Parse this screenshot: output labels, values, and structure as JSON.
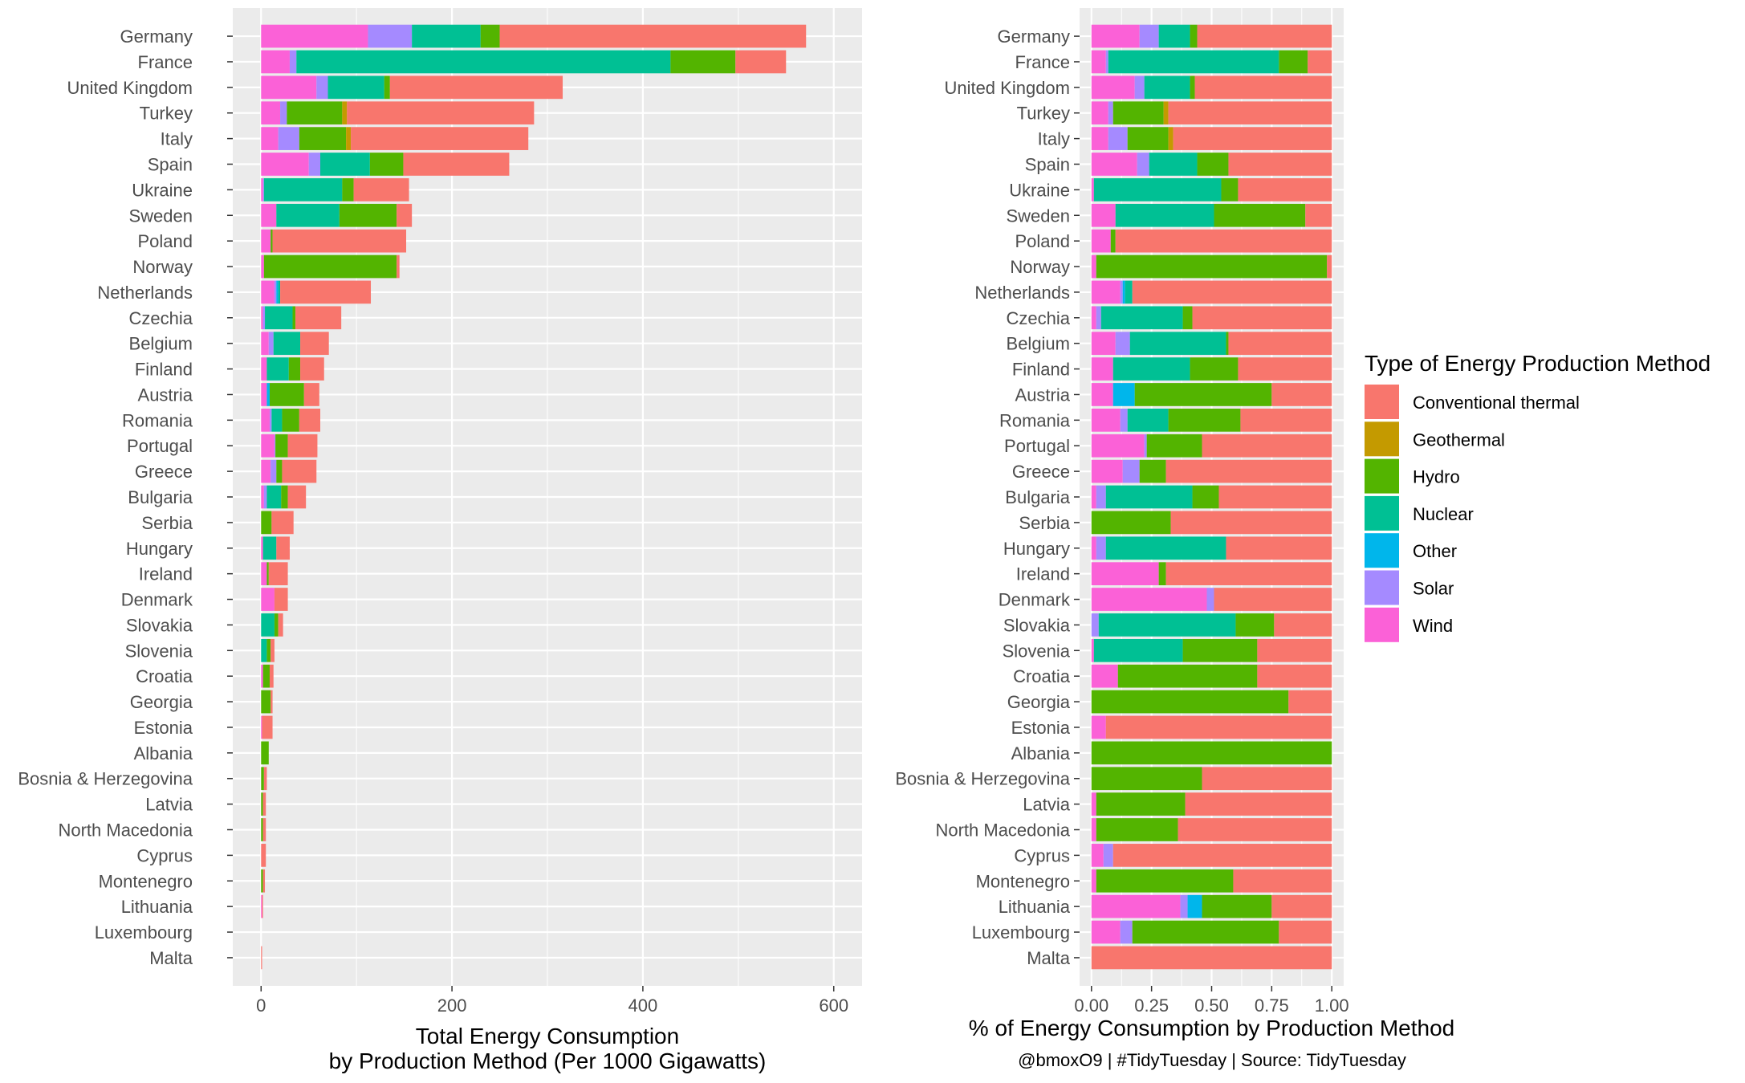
{
  "chart_data": [
    {
      "type": "bar",
      "orientation": "horizontal",
      "stacked": true,
      "categories": [
        "Germany",
        "France",
        "United Kingdom",
        "Turkey",
        "Italy",
        "Spain",
        "Ukraine",
        "Sweden",
        "Poland",
        "Norway",
        "Netherlands",
        "Czechia",
        "Belgium",
        "Finland",
        "Austria",
        "Romania",
        "Portugal",
        "Greece",
        "Bulgaria",
        "Serbia",
        "Hungary",
        "Ireland",
        "Denmark",
        "Slovakia",
        "Slovenia",
        "Croatia",
        "Georgia",
        "Estonia",
        "Albania",
        "Bosnia & Herzegovina",
        "Latvia",
        "North Macedonia",
        "Cyprus",
        "Montenegro",
        "Lithuania",
        "Luxembourg",
        "Malta"
      ],
      "series": [
        {
          "name": "Wind",
          "values": [
            112,
            30,
            58,
            20,
            18,
            50,
            2,
            16,
            10,
            3,
            14,
            2,
            8,
            6,
            6,
            9,
            14,
            10,
            3,
            0,
            2,
            6,
            14,
            0,
            0,
            2,
            0,
            1,
            0,
            0,
            0,
            0,
            0,
            0,
            1,
            0,
            0
          ]
        },
        {
          "name": "Solar",
          "values": [
            46,
            7,
            12,
            7,
            22,
            12,
            1,
            0,
            0,
            0,
            2,
            2,
            5,
            0,
            0,
            2,
            1,
            6,
            3,
            0,
            0,
            0,
            0,
            0,
            0,
            0,
            0,
            0,
            0,
            0,
            0,
            0,
            0,
            0,
            0,
            0,
            0
          ]
        },
        {
          "name": "Other",
          "values": [
            0,
            0,
            0,
            0,
            0,
            0,
            0,
            0,
            0,
            0,
            2,
            0,
            0,
            0,
            3,
            0,
            0,
            0,
            0,
            0,
            0,
            0,
            0,
            0,
            0,
            0,
            0,
            0,
            0,
            0,
            0,
            0,
            0,
            0,
            0,
            0,
            0
          ]
        },
        {
          "name": "Nuclear",
          "values": [
            72,
            392,
            59,
            0,
            0,
            52,
            82,
            66,
            0,
            0,
            2,
            29,
            28,
            23,
            0,
            11,
            0,
            0,
            15,
            0,
            14,
            0,
            0,
            14,
            6,
            0,
            0,
            0,
            0,
            0,
            0,
            0,
            0,
            0,
            0,
            0,
            0
          ]
        },
        {
          "name": "Hydro",
          "values": [
            20,
            68,
            6,
            58,
            49,
            35,
            12,
            60,
            2,
            139,
            0,
            3,
            0,
            12,
            36,
            18,
            13,
            6,
            7,
            11,
            0,
            2,
            0,
            4,
            4,
            7,
            10,
            0,
            8,
            3,
            2,
            2,
            0,
            2,
            0,
            0,
            0
          ]
        },
        {
          "name": "Geothermal",
          "values": [
            0,
            0,
            0,
            5,
            5,
            0,
            0,
            0,
            0,
            0,
            0,
            0,
            0,
            0,
            0,
            0,
            0,
            0,
            0,
            0,
            0,
            0,
            0,
            0,
            0,
            0,
            0,
            0,
            0,
            0,
            0,
            0,
            0,
            0,
            0,
            0,
            0
          ]
        },
        {
          "name": "Conventional thermal",
          "values": [
            321,
            53,
            181,
            196,
            186,
            111,
            58,
            16,
            140,
            3,
            95,
            48,
            30,
            25,
            16,
            22,
            31,
            36,
            19,
            23,
            14,
            20,
            14,
            5,
            4,
            4,
            2,
            11,
            0,
            3,
            3,
            3,
            5,
            2,
            1,
            0,
            1
          ]
        }
      ],
      "xlabel": "Total Energy Consumption\nby Production Method (Per 1000 Gigawatts)",
      "x_ticks": [
        "0",
        "200",
        "400",
        "600"
      ],
      "xlim": [
        0,
        600
      ],
      "grid": true
    },
    {
      "type": "bar",
      "orientation": "horizontal",
      "stacked": true,
      "normalized": true,
      "categories": [
        "Germany",
        "France",
        "United Kingdom",
        "Turkey",
        "Italy",
        "Spain",
        "Ukraine",
        "Sweden",
        "Poland",
        "Norway",
        "Netherlands",
        "Czechia",
        "Belgium",
        "Finland",
        "Austria",
        "Romania",
        "Portugal",
        "Greece",
        "Bulgaria",
        "Serbia",
        "Hungary",
        "Ireland",
        "Denmark",
        "Slovakia",
        "Slovenia",
        "Croatia",
        "Georgia",
        "Estonia",
        "Albania",
        "Bosnia & Herzegovina",
        "Latvia",
        "North Macedonia",
        "Cyprus",
        "Montenegro",
        "Lithuania",
        "Luxembourg",
        "Malta"
      ],
      "series": [
        {
          "name": "Wind",
          "values": [
            0.2,
            0.06,
            0.18,
            0.07,
            0.07,
            0.19,
            0.01,
            0.1,
            0.08,
            0.02,
            0.12,
            0.02,
            0.1,
            0.09,
            0.09,
            0.12,
            0.22,
            0.13,
            0.02,
            0,
            0.02,
            0.28,
            0.48,
            0,
            0.01,
            0.11,
            0,
            0.06,
            0,
            0,
            0.02,
            0.02,
            0.05,
            0.02,
            0.37,
            0.12,
            0
          ]
        },
        {
          "name": "Solar",
          "values": [
            0.08,
            0.01,
            0.04,
            0.02,
            0.08,
            0.05,
            0,
            0,
            0,
            0,
            0.01,
            0.02,
            0.06,
            0,
            0,
            0.03,
            0.01,
            0.07,
            0.04,
            0,
            0.04,
            0,
            0.03,
            0.03,
            0,
            0,
            0,
            0,
            0,
            0,
            0,
            0,
            0.04,
            0,
            0.03,
            0.05,
            0
          ]
        },
        {
          "name": "Other",
          "values": [
            0,
            0,
            0,
            0,
            0,
            0,
            0,
            0,
            0,
            0,
            0.01,
            0,
            0,
            0,
            0.09,
            0,
            0,
            0,
            0,
            0,
            0,
            0,
            0,
            0,
            0,
            0,
            0,
            0,
            0,
            0,
            0,
            0,
            0,
            0,
            0.06,
            0,
            0
          ]
        },
        {
          "name": "Nuclear",
          "values": [
            0.13,
            0.71,
            0.19,
            0,
            0,
            0.2,
            0.53,
            0.41,
            0,
            0,
            0.03,
            0.34,
            0.4,
            0.32,
            0,
            0.17,
            0,
            0,
            0.36,
            0,
            0.5,
            0,
            0,
            0.57,
            0.37,
            0,
            0,
            0,
            0,
            0,
            0,
            0,
            0,
            0,
            0,
            0,
            0
          ]
        },
        {
          "name": "Hydro",
          "values": [
            0.03,
            0.12,
            0.02,
            0.21,
            0.17,
            0.13,
            0.07,
            0.38,
            0.02,
            0.96,
            0,
            0.04,
            0.01,
            0.2,
            0.57,
            0.3,
            0.23,
            0.11,
            0.11,
            0.33,
            0,
            0.03,
            0,
            0.16,
            0.31,
            0.58,
            0.82,
            0,
            1,
            0.46,
            0.37,
            0.34,
            0,
            0.57,
            0.29,
            0.61,
            0
          ]
        },
        {
          "name": "Geothermal",
          "values": [
            0,
            0,
            0,
            0.02,
            0.02,
            0,
            0,
            0,
            0,
            0,
            0,
            0,
            0,
            0,
            0,
            0,
            0,
            0,
            0,
            0,
            0,
            0,
            0,
            0,
            0,
            0,
            0,
            0,
            0,
            0,
            0,
            0,
            0,
            0,
            0,
            0,
            0
          ]
        },
        {
          "name": "Conventional thermal",
          "values": [
            0.56,
            0.1,
            0.57,
            0.68,
            0.66,
            0.43,
            0.39,
            0.11,
            0.9,
            0.02,
            0.83,
            0.58,
            0.43,
            0.39,
            0.25,
            0.38,
            0.54,
            0.69,
            0.47,
            0.67,
            0.44,
            0.69,
            0.49,
            0.24,
            0.31,
            0.31,
            0.18,
            0.94,
            0,
            0.54,
            0.61,
            0.64,
            0.91,
            0.41,
            0.25,
            0.22,
            1
          ]
        }
      ],
      "xlabel": "% of Energy Consumption by Production Method",
      "x_ticks": [
        "0.00",
        "0.25",
        "0.50",
        "0.75",
        "1.00"
      ],
      "xlim": [
        0,
        1
      ],
      "grid": true
    }
  ],
  "legend": {
    "title": "Type of Energy Production Method",
    "placement": "right",
    "items": [
      {
        "label": "Conventional thermal",
        "color": "#F8766D"
      },
      {
        "label": "Geothermal",
        "color": "#C49A00"
      },
      {
        "label": "Hydro",
        "color": "#53B400"
      },
      {
        "label": "Nuclear",
        "color": "#00C094"
      },
      {
        "label": "Other",
        "color": "#00B6EB"
      },
      {
        "label": "Solar",
        "color": "#A58AFF"
      },
      {
        "label": "Wind",
        "color": "#FB61D7"
      }
    ]
  },
  "caption": "@bmoxO9 | #TidyTuesday | Source: TidyTuesday",
  "colors": {
    "panel_background": "#EBEBEB",
    "gridline": "#FFFFFF",
    "Conventional thermal": "#F8766D",
    "Geothermal": "#C49A00",
    "Hydro": "#53B400",
    "Nuclear": "#00C094",
    "Other": "#00B6EB",
    "Solar": "#A58AFF",
    "Wind": "#FB61D7"
  }
}
